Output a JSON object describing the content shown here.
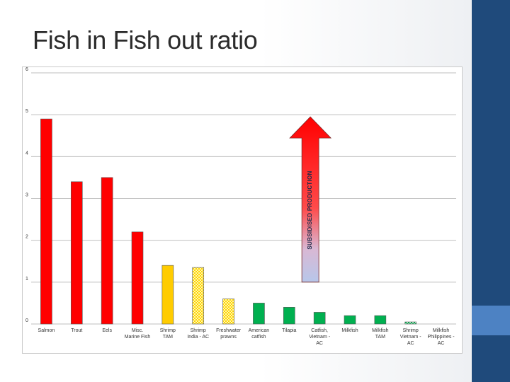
{
  "slide": {
    "title": "Fish in Fish out ratio",
    "colors": {
      "sidebar": "#1f4a7b",
      "sidebar_accent": "#4d82c3"
    }
  },
  "chart_data": {
    "type": "bar",
    "ylim": [
      0,
      6
    ],
    "yticks": [
      0,
      1,
      2,
      3,
      4,
      5,
      6
    ],
    "grid": true,
    "categories": [
      [
        "Salmon"
      ],
      [
        "Trout"
      ],
      [
        "Eels"
      ],
      [
        "Misc.",
        "Marine Fish"
      ],
      [
        "Shrimp",
        "TAM"
      ],
      [
        "Shrimp",
        "India - AC"
      ],
      [
        "Freshwater",
        "prawns"
      ],
      [
        "American",
        "catfish"
      ],
      [
        "Tilapia"
      ],
      [
        "Catfish,",
        "Vietnam -",
        "AC"
      ],
      [
        "Milkfish",
        ""
      ],
      [
        "Milkfish",
        "TAM"
      ],
      [
        "Shrimp",
        "Vietnam -",
        "AC"
      ],
      [
        "Milkfish",
        "Philippines -",
        "AC"
      ]
    ],
    "values": [
      4.9,
      3.4,
      3.5,
      2.2,
      1.4,
      1.35,
      0.6,
      0.5,
      0.4,
      0.28,
      0.2,
      0.2,
      0.05,
      0
    ],
    "bar_styles": [
      "red",
      "red",
      "red",
      "red",
      "yellow",
      "yellow-pattern",
      "yellow-pattern",
      "green",
      "green",
      "green",
      "green",
      "green",
      "green-pattern",
      "none"
    ],
    "colors": {
      "red": "#ff0000",
      "yellow": "#ffcc00",
      "green": "#00b050"
    },
    "annotation": {
      "text": "SUBSIDISED PRODUCTION",
      "from": 1.0,
      "to": 4.95
    }
  }
}
